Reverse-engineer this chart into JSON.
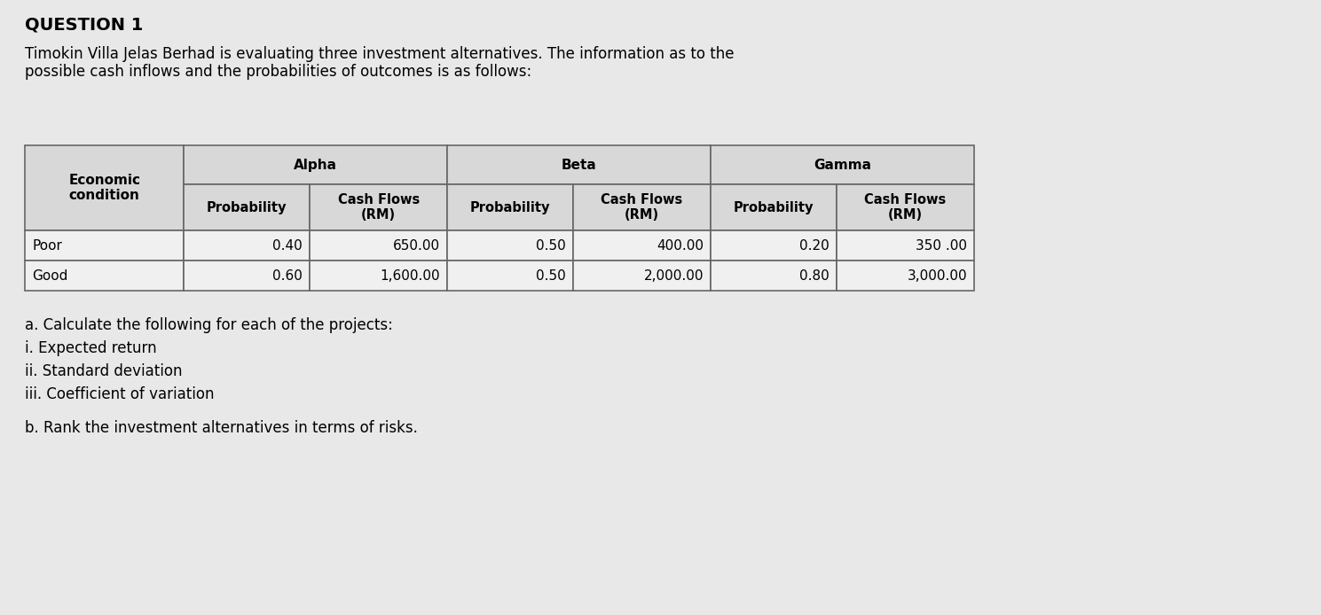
{
  "title": "QUESTION 1",
  "intro_line1": "Timokin Villa Jelas Berhad is evaluating three investment alternatives. The information as to the",
  "intro_line2": "possible cash inflows and the probabilities of outcomes is as follows:",
  "question_a": "a. Calculate the following for each of the projects:",
  "question_a_i": "i. Expected return",
  "question_a_ii": "ii. Standard deviation",
  "question_a_iii": "iii. Coefficient of variation",
  "question_b": "b. Rank the investment alternatives in terms of risks.",
  "background_color": "#e8e8e8",
  "table_header_bg": "#d8d8d8",
  "table_data_bg": "#f0f0f0",
  "table_border_color": "#666666",
  "rows": [
    [
      "Poor",
      "0.40",
      "650.00",
      "0.50",
      "400.00",
      "0.20",
      "350 .00"
    ],
    [
      "Good",
      "0.60",
      "1,600.00",
      "0.50",
      "2,000.00",
      "0.80",
      "3,000.00"
    ]
  ],
  "font_size_title": 14,
  "font_size_intro": 12,
  "font_size_table_hdr": 11,
  "font_size_table_data": 11,
  "font_size_questions": 12
}
